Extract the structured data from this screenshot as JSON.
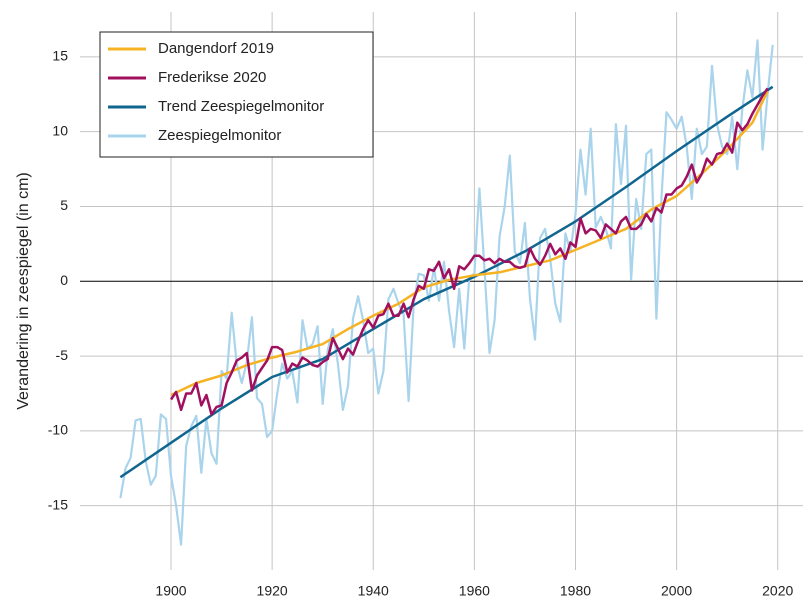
{
  "chart_data": {
    "type": "line",
    "y_label": "Verandering in zeespiegel (in cm)",
    "xlim": [
      1882,
      2025
    ],
    "ylim": [
      -19.3,
      18
    ],
    "xticks": [
      1900,
      1920,
      1940,
      1960,
      1980,
      2000,
      2020
    ],
    "yticks": [
      -15,
      -10,
      -5,
      0,
      5,
      10,
      15
    ],
    "grid": true,
    "zero_line": true,
    "legend": "top-left",
    "series": [
      {
        "name": "Dangendorf 2019",
        "color": "#f5b324",
        "x": [
          1900,
          1905,
          1910,
          1915,
          1920,
          1925,
          1930,
          1935,
          1940,
          1945,
          1950,
          1955,
          1960,
          1965,
          1970,
          1975,
          1980,
          1985,
          1990,
          1995,
          2000,
          2005,
          2010,
          2015,
          2018
        ],
        "values": [
          -7.6,
          -6.8,
          -6.3,
          -5.6,
          -5.1,
          -4.7,
          -4.2,
          -3.2,
          -2.3,
          -1.5,
          -0.4,
          0.1,
          0.4,
          0.6,
          1,
          1.4,
          2.1,
          2.8,
          3.5,
          4.8,
          5.7,
          7.2,
          8.8,
          10.6,
          12.7
        ]
      },
      {
        "name": "Frederikse 2020",
        "color": "#a0105f",
        "x": [
          1900,
          1901,
          1902,
          1903,
          1904,
          1905,
          1906,
          1907,
          1908,
          1909,
          1910,
          1911,
          1912,
          1913,
          1914,
          1915,
          1916,
          1917,
          1918,
          1919,
          1920,
          1921,
          1922,
          1923,
          1924,
          1925,
          1926,
          1927,
          1928,
          1929,
          1930,
          1931,
          1932,
          1933,
          1934,
          1935,
          1936,
          1937,
          1938,
          1939,
          1940,
          1941,
          1942,
          1943,
          1944,
          1945,
          1946,
          1947,
          1948,
          1949,
          1950,
          1951,
          1952,
          1953,
          1954,
          1955,
          1956,
          1957,
          1958,
          1959,
          1960,
          1961,
          1962,
          1963,
          1964,
          1965,
          1966,
          1967,
          1968,
          1969,
          1970,
          1971,
          1972,
          1973,
          1974,
          1975,
          1976,
          1977,
          1978,
          1979,
          1980,
          1981,
          1982,
          1983,
          1984,
          1985,
          1986,
          1987,
          1988,
          1989,
          1990,
          1991,
          1992,
          1993,
          1994,
          1995,
          1996,
          1997,
          1998,
          1999,
          2000,
          2001,
          2002,
          2003,
          2004,
          2005,
          2006,
          2007,
          2008,
          2009,
          2010,
          2011,
          2012,
          2013,
          2014,
          2015,
          2016,
          2017,
          2018
        ],
        "values": [
          -7.9,
          -7.4,
          -8.6,
          -7.5,
          -7.5,
          -6.8,
          -8.3,
          -7.6,
          -8.9,
          -8.4,
          -8.3,
          -6.8,
          -6.1,
          -5.3,
          -5.1,
          -4.8,
          -7.3,
          -6.3,
          -5.8,
          -5.3,
          -4.4,
          -4.4,
          -4.6,
          -6.1,
          -5.5,
          -5.7,
          -5.1,
          -5.3,
          -5.6,
          -5.7,
          -5.4,
          -5.2,
          -3.8,
          -4.5,
          -5.2,
          -4.5,
          -4.9,
          -4,
          -3.2,
          -2.6,
          -3.1,
          -2.3,
          -2.2,
          -1.5,
          -2.3,
          -2.3,
          -1.5,
          -2.4,
          -1.2,
          -0.3,
          -0.5,
          0.8,
          0.7,
          1.3,
          0.2,
          0.8,
          -0.5,
          1,
          0.8,
          1.2,
          1.7,
          1.7,
          1.4,
          1.5,
          1.2,
          1.5,
          1.3,
          1.3,
          1,
          0.9,
          1,
          2.2,
          1.5,
          1.1,
          1.7,
          2.5,
          1.8,
          2.2,
          1.5,
          2.6,
          2.3,
          4.2,
          3.2,
          3.5,
          3.4,
          2.9,
          3.8,
          3.5,
          3.2,
          4,
          4.3,
          3.5,
          3.5,
          3.8,
          4.5,
          4,
          4.9,
          4.6,
          5.8,
          5.8,
          6.2,
          6.4,
          7,
          7.8,
          6.6,
          7.2,
          8.2,
          7.8,
          8.5,
          8.6,
          9.2,
          8.6,
          10.6,
          10.1,
          10.5,
          11.2,
          11.8,
          12.4,
          12.9
        ]
      },
      {
        "name": "Trend Zeespiegelmonitor",
        "color": "#11668f",
        "x": [
          1890,
          1900,
          1910,
          1920,
          1930,
          1940,
          1950,
          1960,
          1970,
          1980,
          1990,
          2000,
          2010,
          2019
        ],
        "values": [
          -13.1,
          -10.8,
          -8.5,
          -6.4,
          -5.2,
          -3.2,
          -1.2,
          0.3,
          2,
          4,
          6.3,
          8.7,
          11,
          13
        ]
      },
      {
        "name": "Zeespiegelmonitor",
        "color": "#a9d4ec",
        "x": [
          1890,
          1891,
          1892,
          1893,
          1894,
          1895,
          1896,
          1897,
          1898,
          1899,
          1900,
          1901,
          1902,
          1903,
          1904,
          1905,
          1906,
          1907,
          1908,
          1909,
          1910,
          1911,
          1912,
          1913,
          1914,
          1915,
          1916,
          1917,
          1918,
          1919,
          1920,
          1921,
          1922,
          1923,
          1924,
          1925,
          1926,
          1927,
          1928,
          1929,
          1930,
          1931,
          1932,
          1933,
          1934,
          1935,
          1936,
          1937,
          1938,
          1939,
          1940,
          1941,
          1942,
          1943,
          1944,
          1945,
          1946,
          1947,
          1948,
          1949,
          1950,
          1951,
          1952,
          1953,
          1954,
          1955,
          1956,
          1957,
          1958,
          1959,
          1960,
          1961,
          1962,
          1963,
          1964,
          1965,
          1966,
          1967,
          1968,
          1969,
          1970,
          1971,
          1972,
          1973,
          1974,
          1975,
          1976,
          1977,
          1978,
          1979,
          1980,
          1981,
          1982,
          1983,
          1984,
          1985,
          1986,
          1987,
          1988,
          1989,
          1990,
          1991,
          1992,
          1993,
          1994,
          1995,
          1996,
          1997,
          1998,
          1999,
          2000,
          2001,
          2002,
          2003,
          2004,
          2005,
          2006,
          2007,
          2008,
          2009,
          2010,
          2011,
          2012,
          2013,
          2014,
          2015,
          2016,
          2017,
          2018,
          2019
        ],
        "values": [
          -14.5,
          -12.5,
          -11.8,
          -9.3,
          -9.2,
          -12,
          -13.6,
          -13,
          -8.9,
          -9.2,
          -13,
          -15,
          -17.6,
          -11,
          -9.7,
          -9,
          -12.8,
          -9.2,
          -11.5,
          -12.2,
          -6,
          -6.5,
          -2.1,
          -5.5,
          -6.8,
          -5.4,
          -2.4,
          -7.8,
          -8.2,
          -10.4,
          -10,
          -7.5,
          -5.5,
          -6.5,
          -6,
          -8.1,
          -2.6,
          -4.5,
          -4.2,
          -3,
          -8.2,
          -4.6,
          -3.2,
          -5.5,
          -8.6,
          -7,
          -2.5,
          -1,
          -2.6,
          -4.8,
          -4.5,
          -7.5,
          -6,
          -1.2,
          -0.5,
          -1.5,
          -2.2,
          -8,
          -1.5,
          0.5,
          0.4,
          -1.3,
          0.9,
          -1.3,
          1.3,
          -2,
          -4.4,
          -0.5,
          -4.5,
          0.3,
          0.5,
          6.2,
          0.8,
          -4.8,
          -2.6,
          3,
          5,
          8.4,
          2,
          1.2,
          3.9,
          -1.2,
          -3.9,
          2.9,
          3.5,
          1.5,
          -1.5,
          -2.7,
          3.2,
          2,
          4.5,
          8.8,
          5.8,
          10.2,
          3.6,
          4.3,
          3.5,
          2.2,
          10.5,
          6.5,
          10.4,
          0.1,
          5.5,
          3.5,
          8.5,
          8.8,
          -2.5,
          5.5,
          11.3,
          10.8,
          10.2,
          11,
          9,
          5.5,
          10.2,
          8.5,
          9,
          14.4,
          10.5,
          9,
          8.5,
          11,
          7.5,
          11.5,
          14.1,
          12.3,
          16.1,
          8.8,
          12.5,
          15.8
        ]
      }
    ]
  }
}
